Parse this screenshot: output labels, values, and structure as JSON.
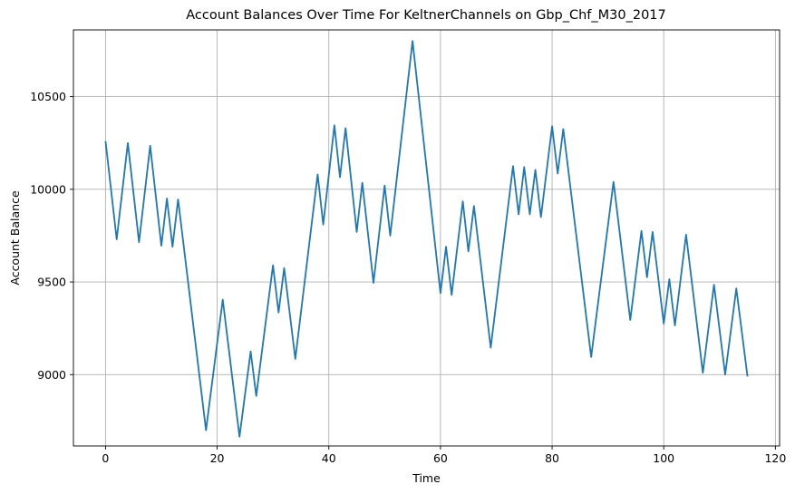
{
  "chart_data": {
    "type": "line",
    "title": "Account Balances Over Time For KeltnerChannels on Gbp_Chf_M30_2017",
    "xlabel": "Time",
    "ylabel": "Account Balance",
    "xlim": [
      -5.75,
      120.75
    ],
    "ylim": [
      8615,
      10860
    ],
    "xticks": [
      0,
      20,
      40,
      60,
      80,
      100,
      120
    ],
    "yticks": [
      9000,
      9500,
      10000,
      10500
    ],
    "grid": true,
    "series": [
      {
        "color": "#1f77b4",
        "points": [
          [
            0,
            10260
          ],
          [
            2,
            9730
          ],
          [
            4,
            10250
          ],
          [
            6,
            9715
          ],
          [
            8,
            10235
          ],
          [
            10,
            9695
          ],
          [
            11,
            9950
          ],
          [
            12,
            9690
          ],
          [
            13,
            9945
          ],
          [
            18,
            8700
          ],
          [
            21,
            9405
          ],
          [
            24,
            8665
          ],
          [
            26,
            9125
          ],
          [
            27,
            8885
          ],
          [
            30,
            9590
          ],
          [
            31,
            9335
          ],
          [
            32,
            9575
          ],
          [
            34,
            9085
          ],
          [
            38,
            10080
          ],
          [
            39,
            9810
          ],
          [
            41,
            10345
          ],
          [
            42,
            10065
          ],
          [
            43,
            10330
          ],
          [
            45,
            9770
          ],
          [
            46,
            10035
          ],
          [
            48,
            9495
          ],
          [
            50,
            10020
          ],
          [
            51,
            9750
          ],
          [
            55,
            10800
          ],
          [
            60,
            9440
          ],
          [
            61,
            9690
          ],
          [
            62,
            9430
          ],
          [
            64,
            9935
          ],
          [
            65,
            9665
          ],
          [
            66,
            9910
          ],
          [
            69,
            9145
          ],
          [
            73,
            10125
          ],
          [
            74,
            9865
          ],
          [
            75,
            10120
          ],
          [
            76,
            9865
          ],
          [
            77,
            10105
          ],
          [
            78,
            9850
          ],
          [
            80,
            10340
          ],
          [
            81,
            10085
          ],
          [
            82,
            10325
          ],
          [
            87,
            9095
          ],
          [
            91,
            10040
          ],
          [
            94,
            9295
          ],
          [
            96,
            9775
          ],
          [
            97,
            9525
          ],
          [
            98,
            9770
          ],
          [
            100,
            9275
          ],
          [
            101,
            9515
          ],
          [
            102,
            9265
          ],
          [
            104,
            9755
          ],
          [
            107,
            9010
          ],
          [
            109,
            9485
          ],
          [
            111,
            9000
          ],
          [
            113,
            9465
          ],
          [
            115,
            8990
          ]
        ]
      }
    ]
  }
}
